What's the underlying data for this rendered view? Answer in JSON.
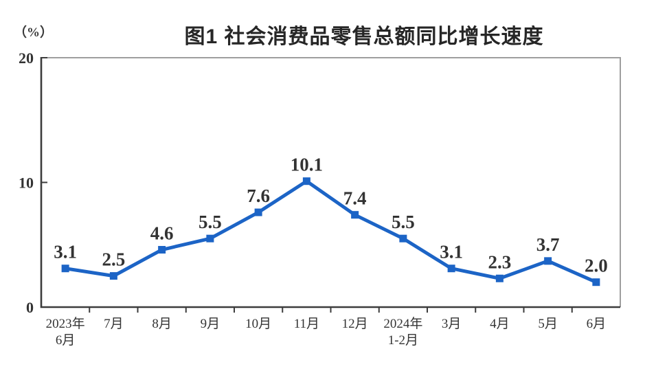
{
  "chart_data": {
    "type": "line",
    "title": "图1 社会消费品零售总额同比增长速度",
    "unit_label": "（%）",
    "categories": [
      "2023年\n6月",
      "7月",
      "8月",
      "9月",
      "10月",
      "11月",
      "12月",
      "2024年\n1-2月",
      "3月",
      "4月",
      "5月",
      "6月"
    ],
    "values": [
      3.1,
      2.5,
      4.6,
      5.5,
      7.6,
      10.1,
      7.4,
      5.5,
      3.1,
      2.3,
      3.7,
      2.0
    ],
    "data_labels": [
      "3.1",
      "2.5",
      "4.6",
      "5.5",
      "7.6",
      "10.1",
      "7.4",
      "5.5",
      "3.1",
      "2.3",
      "3.7",
      "2.0"
    ],
    "xlabel": "",
    "ylabel": "（%）",
    "ylim": [
      0,
      20
    ],
    "yticks": [
      0,
      10,
      20
    ],
    "grid": false,
    "legend_position": "none",
    "series_name": "社会消费品零售总额同比增长速度",
    "line_color": "#1c64c6",
    "marker": "square",
    "axis_color": "#3c3c3c",
    "border_color": "#9e9e9e",
    "label_color": "#333333"
  }
}
